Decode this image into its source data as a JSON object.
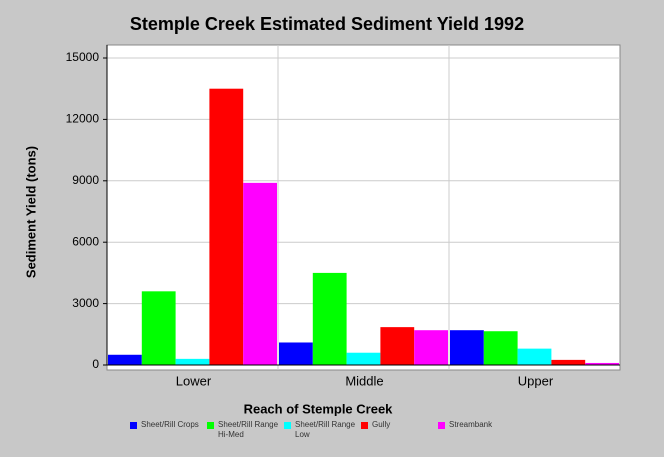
{
  "chart_data": {
    "type": "bar",
    "title": "Stemple Creek Estimated Sediment Yield 1992",
    "x_label": "Reach of Stemple Creek",
    "y_label": "Sediment Yield (tons)",
    "categories": [
      "Lower",
      "Middle",
      "Upper"
    ],
    "series": [
      {
        "name": "Sheet/Rill Crops",
        "color": "#0000ff",
        "values": [
          500,
          1100,
          1700
        ]
      },
      {
        "name": "Sheet/Rill Range Hi-Med",
        "color": "#00ff00",
        "values": [
          3600,
          4500,
          1650
        ]
      },
      {
        "name": "Sheet/Rill Range Low",
        "color": "#00ffff",
        "values": [
          300,
          600,
          800
        ]
      },
      {
        "name": "Gully",
        "color": "#ff0000",
        "values": [
          13500,
          1850,
          250
        ]
      },
      {
        "name": "Streambank",
        "color": "#ff00ff",
        "values": [
          8900,
          1700,
          100
        ]
      }
    ],
    "ylim": [
      0,
      15000
    ],
    "yticks": [
      0,
      3000,
      6000,
      9000,
      12000,
      15000
    ],
    "grid": true
  }
}
